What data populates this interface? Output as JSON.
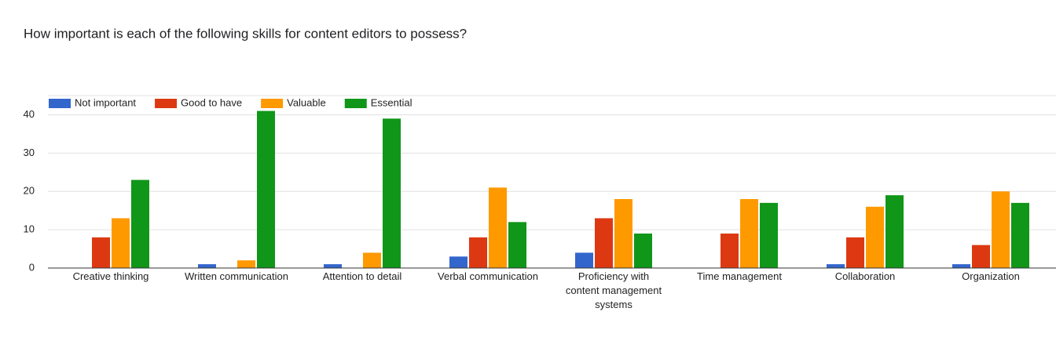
{
  "chart_data": {
    "type": "bar",
    "title": "How important is each of the following skills for content editors to possess?",
    "categories": [
      "Creative thinking",
      "Written communication",
      "Attention to detail",
      "Verbal communication",
      "Proficiency with content management systems",
      "Time management",
      "Collaboration",
      "Organization"
    ],
    "series": [
      {
        "name": "Not important",
        "color": "#3366cc",
        "values": [
          0,
          1,
          1,
          3,
          4,
          0,
          1,
          1
        ]
      },
      {
        "name": "Good to have",
        "color": "#dc3912",
        "values": [
          8,
          0,
          0,
          8,
          13,
          9,
          8,
          6
        ]
      },
      {
        "name": "Valuable",
        "color": "#ff9900",
        "values": [
          13,
          2,
          4,
          21,
          18,
          18,
          16,
          20
        ]
      },
      {
        "name": "Essential",
        "color": "#109618",
        "values": [
          23,
          41,
          39,
          12,
          9,
          17,
          19,
          17
        ]
      }
    ],
    "ylim": [
      0,
      45
    ],
    "yticks": [
      0,
      10,
      20,
      30,
      40
    ],
    "grid": true,
    "legend": "top-left"
  }
}
